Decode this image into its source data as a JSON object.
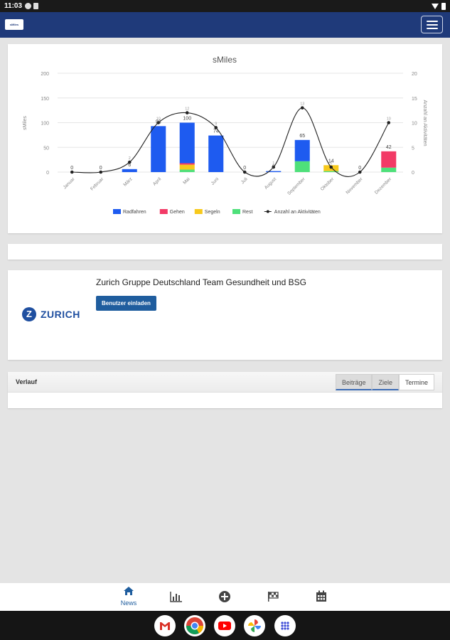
{
  "status_bar": {
    "time": "11:03"
  },
  "app_bar": {
    "logo_text": "sMiles"
  },
  "chart_data": {
    "type": "bar",
    "title": "sMiles",
    "ylabel": "sMiles",
    "y2label": "Anzahl an Aktivitäten",
    "ylim": [
      0,
      200
    ],
    "y2lim": [
      0,
      20
    ],
    "yticks": [
      "0",
      "50",
      "100",
      "150",
      "200"
    ],
    "y2ticks": [
      "0",
      "5",
      "10",
      "15",
      "20"
    ],
    "stacked": true,
    "categories": [
      "Januar",
      "Februar",
      "März",
      "April",
      "Mai",
      "Juni",
      "Juli",
      "August",
      "September",
      "Oktober",
      "November",
      "Dezember"
    ],
    "series": [
      {
        "name": "Radfahren",
        "color": "#1e5bf0",
        "values": [
          0,
          0,
          6,
          93,
          82,
          74,
          0,
          2,
          43,
          0,
          0,
          0
        ]
      },
      {
        "name": "Gehen",
        "color": "#f23a66",
        "values": [
          0,
          0,
          0,
          0,
          3,
          0,
          0,
          0,
          0,
          0,
          0,
          33
        ]
      },
      {
        "name": "Segeln",
        "color": "#f7c91c",
        "values": [
          0,
          0,
          0,
          0,
          10,
          0,
          0,
          0,
          0,
          12,
          0,
          0
        ]
      },
      {
        "name": "Rest",
        "color": "#4ee07a",
        "values": [
          0,
          0,
          0,
          0,
          5,
          0,
          0,
          0,
          22,
          2,
          0,
          9
        ]
      }
    ],
    "totals": [
      "0",
      "0",
      "6",
      "93",
      "100",
      "74",
      "0",
      "2",
      "65",
      "14",
      "0",
      "42"
    ],
    "line": {
      "name": "Anzahl an Aktivitäten",
      "color": "#222222",
      "values": [
        0,
        0,
        2,
        10,
        12,
        9,
        0,
        1,
        13,
        1,
        0,
        10
      ]
    },
    "legend_position": "bottom"
  },
  "team": {
    "name": "Zurich Gruppe Deutschland Team Gesundheit und BSG",
    "invite_label": "Benutzer einladen",
    "logo_text": "ZURICH",
    "logo_mark": "Z"
  },
  "history": {
    "title": "Verlauf",
    "tabs": [
      "Beiträge",
      "Ziele",
      "Termine"
    ]
  },
  "bottom_nav": {
    "news_label": "News",
    "icons": [
      "home-icon",
      "chart-icon",
      "plus-circle-icon",
      "flag-icon",
      "calendar-icon"
    ]
  },
  "dock": {
    "icons": [
      "gmail-icon",
      "chrome-icon",
      "youtube-icon",
      "photos-icon",
      "apps-icon"
    ]
  }
}
